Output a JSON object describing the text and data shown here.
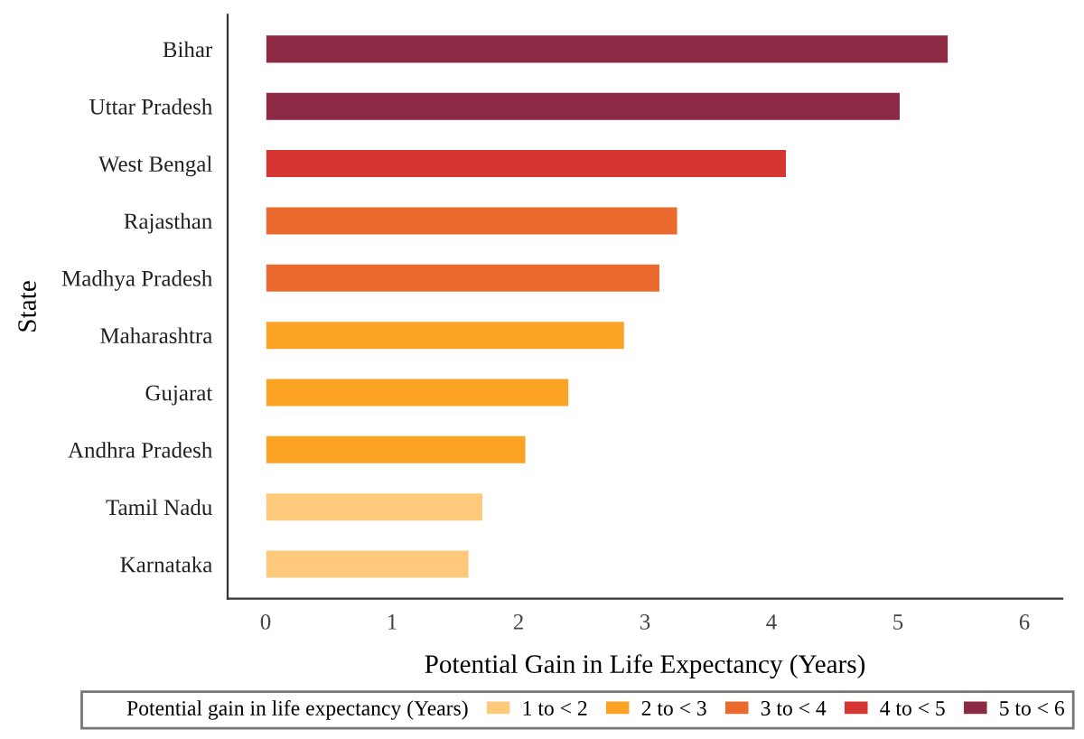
{
  "chart_data": {
    "type": "bar",
    "orientation": "horizontal",
    "xlabel": "Potential Gain in Life Expectancy (Years)",
    "ylabel": "State",
    "legend_title": "Potential gain in life expectancy (Years)",
    "legend": "bottom",
    "grid": false,
    "categories": [
      "Bihar",
      "Uttar Pradesh",
      "West Bengal",
      "Rajasthan",
      "Madhya Pradesh",
      "Maharashtra",
      "Gujarat",
      "Andhra Pradesh",
      "Tamil Nadu",
      "Karnataka"
    ],
    "xlim": [
      -0.3,
      6.3
    ],
    "xticks": [
      0,
      1,
      2,
      3,
      4,
      5,
      6
    ],
    "series": [
      {
        "name": "1 to < 2",
        "color": "#fec97a",
        "values": [
          null,
          null,
          null,
          null,
          null,
          null,
          null,
          null,
          1.72,
          1.61
        ]
      },
      {
        "name": "2 to < 3",
        "color": "#fca326",
        "values": [
          null,
          null,
          null,
          null,
          null,
          2.84,
          2.4,
          2.06,
          null,
          null
        ]
      },
      {
        "name": "3 to < 4",
        "color": "#e96a2c",
        "values": [
          null,
          null,
          null,
          3.26,
          3.12,
          null,
          null,
          null,
          null,
          null
        ]
      },
      {
        "name": "4 to < 5",
        "color": "#d63632",
        "values": [
          null,
          null,
          4.12,
          null,
          null,
          null,
          null,
          null,
          null,
          null
        ]
      },
      {
        "name": "5 to < 6",
        "color": "#8c2a45",
        "values": [
          5.4,
          5.02,
          null,
          null,
          null,
          null,
          null,
          null,
          null,
          null
        ]
      }
    ]
  }
}
